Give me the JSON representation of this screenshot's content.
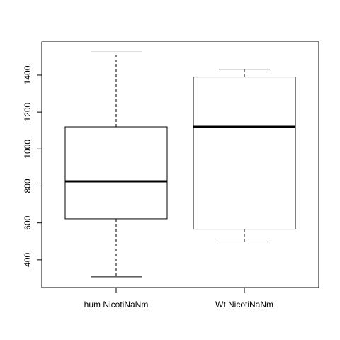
{
  "chart_data": {
    "type": "boxplot",
    "title": "",
    "xlabel": "",
    "ylabel": "",
    "categories": [
      "hum NicotiNaNm",
      "Wt NicotiNaNm"
    ],
    "boxes": [
      {
        "category": "hum NicotiNaNm",
        "min": 308,
        "q1": 622,
        "median": 825,
        "q3": 1120,
        "max": 1525
      },
      {
        "category": "Wt NicotiNaNm",
        "min": 497,
        "q1": 566,
        "median": 1120,
        "q3": 1390,
        "max": 1432
      }
    ],
    "ylim": [
      250,
      1580
    ],
    "yticks": [
      400,
      600,
      800,
      1000,
      1200,
      1400
    ],
    "grid": false
  }
}
